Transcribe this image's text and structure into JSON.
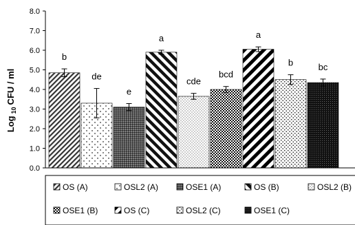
{
  "chart_data": {
    "type": "bar",
    "ylabel": {
      "prefix": "Log",
      "sub": "10",
      "suffix": "CFU / ml"
    },
    "ylim": [
      0,
      8
    ],
    "yticks": [
      "0.0",
      "1.0",
      "2.0",
      "3.0",
      "4.0",
      "5.0",
      "6.0",
      "7.0",
      "8.0"
    ],
    "grid": false,
    "legend_position": "bottom",
    "series": [
      {
        "name": "OS (A)",
        "value": 4.85,
        "error": 0.2,
        "label": "b",
        "pattern": "diag-right-dense"
      },
      {
        "name": "OSL2 (A)",
        "value": 3.3,
        "error": 0.75,
        "label": "de",
        "pattern": "dots-sparse"
      },
      {
        "name": "OSE1 (A)",
        "value": 3.1,
        "error": 0.18,
        "label": "e",
        "pattern": "crosshatch-dense"
      },
      {
        "name": "OS (B)",
        "value": 5.9,
        "error": 0.1,
        "label": "a",
        "pattern": "diag-left-wide"
      },
      {
        "name": "OSL2 (B)",
        "value": 3.65,
        "error": 0.15,
        "label": "cde",
        "pattern": "dots-fine"
      },
      {
        "name": "OSE1 (B)",
        "value": 4.0,
        "error": 0.15,
        "label": "bcd",
        "pattern": "checker"
      },
      {
        "name": "OS (C)",
        "value": 6.05,
        "error": 0.12,
        "label": "a",
        "pattern": "diag-right-wide"
      },
      {
        "name": "OSL2 (C)",
        "value": 4.5,
        "error": 0.25,
        "label": "b",
        "pattern": "dots-medium"
      },
      {
        "name": "OSE1 (C)",
        "value": 4.35,
        "error": 0.18,
        "label": "bc",
        "pattern": "dense-dark"
      }
    ]
  }
}
